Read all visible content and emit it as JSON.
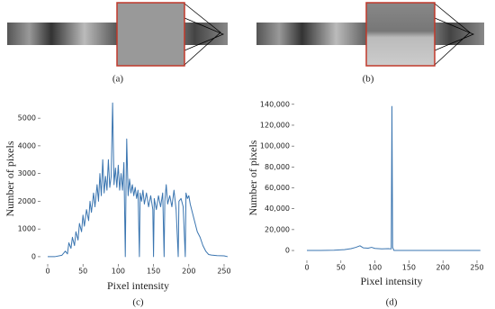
{
  "captions": [
    "(a)",
    "(b)"
  ],
  "chart_data": [
    {
      "type": "line",
      "caption": "(c)",
      "xlabel": "Pixel intensity",
      "ylabel": "Number of pixels",
      "x": [
        0,
        10,
        20,
        25,
        28,
        30,
        33,
        35,
        38,
        40,
        43,
        45,
        48,
        50,
        52,
        55,
        58,
        60,
        62,
        65,
        67,
        70,
        72,
        74,
        76,
        78,
        80,
        82,
        84,
        86,
        88,
        90,
        92,
        94,
        96,
        98,
        100,
        102,
        104,
        106,
        108,
        110,
        111,
        112,
        114,
        116,
        118,
        120,
        122,
        124,
        126,
        128,
        130,
        131,
        133,
        135,
        137,
        140,
        143,
        146,
        149,
        150,
        151,
        154,
        157,
        160,
        163,
        165,
        166,
        168,
        170,
        173,
        176,
        179,
        182,
        185,
        186,
        189,
        192,
        195,
        196,
        198,
        200,
        202,
        205,
        208,
        212,
        216,
        220,
        224,
        228,
        232,
        240,
        250,
        255
      ],
      "series": [
        {
          "color": "#3a75b0",
          "values": [
            0,
            0,
            50,
            200,
            100,
            500,
            300,
            700,
            400,
            900,
            600,
            1200,
            900,
            1500,
            1100,
            1700,
            1300,
            2000,
            1600,
            2300,
            1800,
            2600,
            2000,
            3000,
            2200,
            3500,
            2300,
            2900,
            2400,
            3500,
            2500,
            2900,
            5550,
            2600,
            3200,
            2500,
            3300,
            2400,
            3000,
            2400,
            3400,
            0,
            2500,
            4250,
            2200,
            2800,
            2300,
            2600,
            2200,
            2500,
            2100,
            2400,
            0,
            2300,
            2000,
            2400,
            1900,
            2300,
            1800,
            2200,
            1700,
            0,
            2100,
            1700,
            2200,
            1800,
            2300,
            0,
            2000,
            2600,
            1900,
            2200,
            1800,
            2400,
            1700,
            0,
            2000,
            2100,
            1800,
            0,
            2300,
            2100,
            2200,
            1900,
            1600,
            1300,
            900,
            700,
            400,
            200,
            80,
            60,
            40,
            30,
            0
          ]
        }
      ],
      "xlim": [
        -10.2,
        266.6
      ],
      "ylim": [
        -230,
        5850
      ],
      "xticks": [
        0,
        50,
        100,
        150,
        200,
        250
      ],
      "yticks": [
        0,
        1000,
        2000,
        3000,
        4000,
        5000
      ]
    },
    {
      "type": "line",
      "caption": "(d)",
      "xlabel": "Pixel intensity",
      "ylabel": "Number of pixels",
      "x": [
        0,
        20,
        40,
        55,
        65,
        72,
        78,
        83,
        90,
        95,
        100,
        110,
        120,
        124,
        125,
        126,
        128,
        140,
        200,
        255
      ],
      "series": [
        {
          "color": "#3a75b0",
          "values": [
            0,
            0,
            200,
            800,
            1800,
            3000,
            4500,
            2500,
            2200,
            3000,
            2000,
            1500,
            1800,
            1500,
            138000,
            3000,
            0,
            0,
            0,
            0
          ]
        }
      ],
      "xlim": [
        -11.9,
        260.6
      ],
      "ylim": [
        -6000,
        145000
      ],
      "xticks": [
        0,
        50,
        100,
        150,
        200,
        250
      ],
      "yticks": [
        0,
        {
          "value": 20000,
          "label": "20,000"
        },
        {
          "value": 40000,
          "label": "40,000"
        },
        {
          "value": 60000,
          "label": "60,000"
        },
        {
          "value": 80000,
          "label": "80,000"
        },
        {
          "value": 100000,
          "label": "100,000"
        },
        {
          "value": 120000,
          "label": "120,000"
        },
        {
          "value": 140000,
          "label": "140,000"
        }
      ]
    }
  ]
}
